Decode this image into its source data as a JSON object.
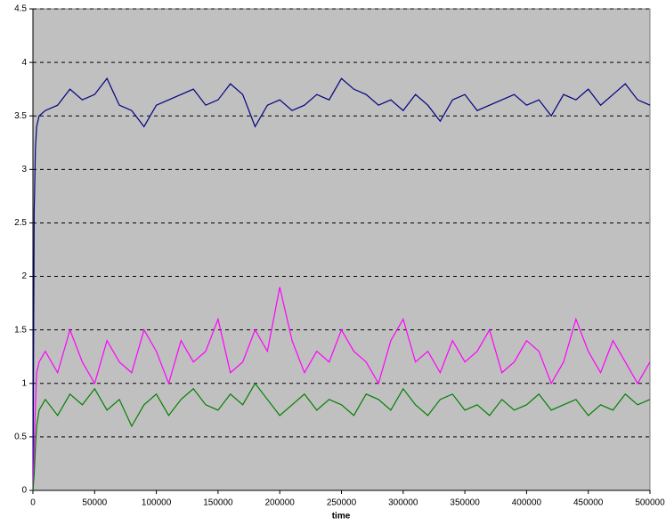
{
  "chart_data": {
    "type": "line",
    "xlabel": "time",
    "x": [
      0,
      1000,
      2000,
      3000,
      5000,
      10000,
      20000,
      30000,
      40000,
      50000,
      60000,
      70000,
      80000,
      90000,
      100000,
      110000,
      120000,
      130000,
      140000,
      150000,
      160000,
      170000,
      180000,
      190000,
      200000,
      210000,
      220000,
      230000,
      240000,
      250000,
      260000,
      270000,
      280000,
      290000,
      300000,
      310000,
      320000,
      330000,
      340000,
      350000,
      360000,
      370000,
      380000,
      390000,
      400000,
      410000,
      420000,
      430000,
      440000,
      450000,
      460000,
      470000,
      480000,
      490000,
      500000
    ],
    "series": [
      {
        "color": "#000080",
        "values": [
          0,
          2.6,
          3.2,
          3.4,
          3.5,
          3.55,
          3.6,
          3.75,
          3.65,
          3.7,
          3.85,
          3.6,
          3.55,
          3.4,
          3.6,
          3.65,
          3.7,
          3.75,
          3.6,
          3.65,
          3.8,
          3.7,
          3.4,
          3.6,
          3.65,
          3.55,
          3.6,
          3.7,
          3.65,
          3.85,
          3.75,
          3.7,
          3.6,
          3.65,
          3.55,
          3.7,
          3.6,
          3.45,
          3.65,
          3.7,
          3.55,
          3.6,
          3.65,
          3.7,
          3.6,
          3.65,
          3.5,
          3.7,
          3.65,
          3.75,
          3.6,
          3.7,
          3.8,
          3.65,
          3.6
        ]
      },
      {
        "color": "#ff00ff",
        "values": [
          0,
          0.4,
          0.8,
          1.1,
          1.2,
          1.3,
          1.1,
          1.5,
          1.2,
          1.0,
          1.4,
          1.2,
          1.1,
          1.5,
          1.3,
          1.0,
          1.4,
          1.2,
          1.3,
          1.6,
          1.1,
          1.2,
          1.5,
          1.3,
          1.9,
          1.4,
          1.1,
          1.3,
          1.2,
          1.5,
          1.3,
          1.2,
          1.0,
          1.4,
          1.6,
          1.2,
          1.3,
          1.1,
          1.4,
          1.2,
          1.3,
          1.5,
          1.1,
          1.2,
          1.4,
          1.3,
          1.0,
          1.2,
          1.6,
          1.3,
          1.1,
          1.4,
          1.2,
          1.0,
          1.2
        ]
      },
      {
        "color": "#008000",
        "values": [
          0,
          0.15,
          0.4,
          0.6,
          0.75,
          0.85,
          0.7,
          0.9,
          0.8,
          0.95,
          0.75,
          0.85,
          0.6,
          0.8,
          0.9,
          0.7,
          0.85,
          0.95,
          0.8,
          0.75,
          0.9,
          0.8,
          1.0,
          0.85,
          0.7,
          0.8,
          0.9,
          0.75,
          0.85,
          0.8,
          0.7,
          0.9,
          0.85,
          0.75,
          0.95,
          0.8,
          0.7,
          0.85,
          0.9,
          0.75,
          0.8,
          0.7,
          0.85,
          0.75,
          0.8,
          0.9,
          0.75,
          0.8,
          0.85,
          0.7,
          0.8,
          0.75,
          0.9,
          0.8,
          0.85
        ]
      }
    ],
    "xlim": [
      0,
      500000
    ],
    "xticks": [
      0,
      50000,
      100000,
      150000,
      200000,
      250000,
      300000,
      350000,
      400000,
      450000,
      500000
    ],
    "ylim": [
      0,
      4.5
    ],
    "yticks": [
      0,
      0.5,
      1,
      1.5,
      2,
      2.5,
      3,
      3.5,
      4,
      4.5
    ],
    "grid": true,
    "background": "#c0c0c0"
  }
}
